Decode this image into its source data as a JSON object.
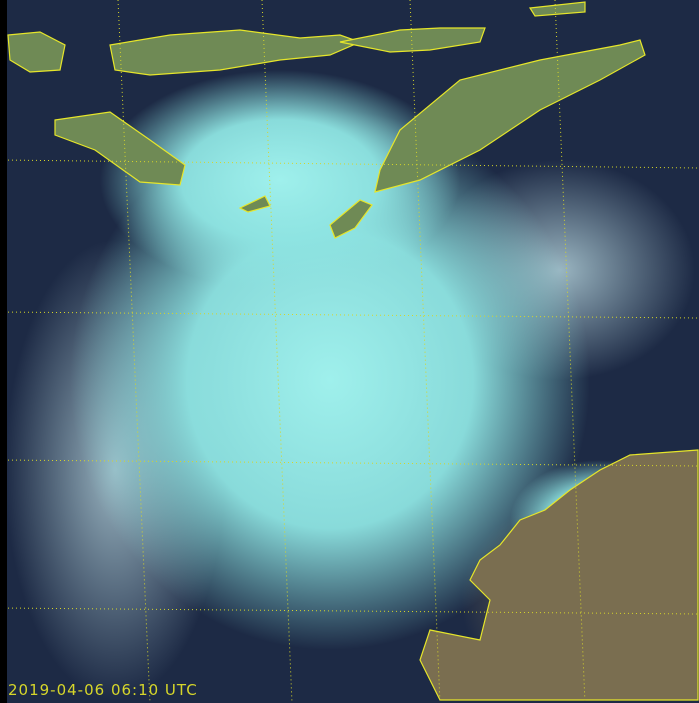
{
  "image": {
    "kind": "satellite-true-color-composite",
    "timestamp": "2019-04-06 06:10 UTC",
    "colors": {
      "ocean": "#1d2a45",
      "cloud": "#8fe8e6",
      "land": "#6f8a55",
      "coastline": "#e6e62a",
      "grid": "#d6d62a",
      "timestamp_text": "#d6d62a"
    }
  }
}
